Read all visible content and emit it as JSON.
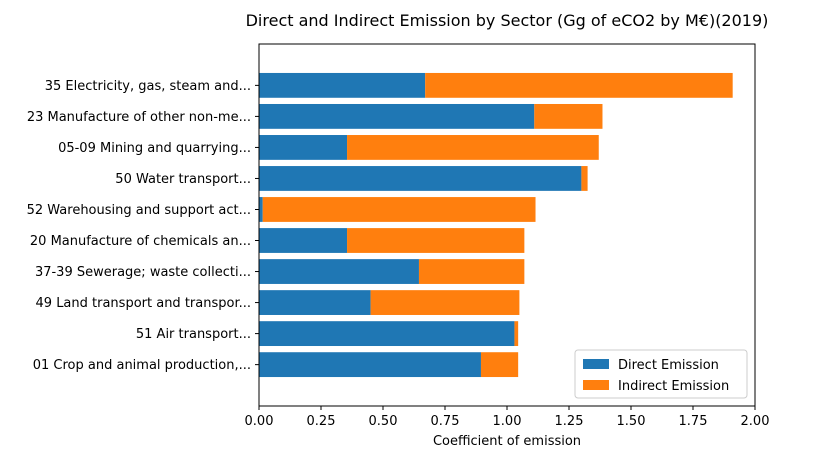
{
  "chart_data": {
    "type": "bar",
    "orientation": "horizontal",
    "stacked": true,
    "title": "Direct and Indirect Emission by Sector (Gg of eCO2 by M€)(2019)",
    "xlabel": "Coefficient of emission",
    "ylabel": "",
    "xlim": [
      0,
      2.0
    ],
    "xticks": [
      "0.00",
      "0.25",
      "0.50",
      "0.75",
      "1.00",
      "1.25",
      "1.50",
      "1.75",
      "2.00"
    ],
    "xtick_values": [
      0,
      0.25,
      0.5,
      0.75,
      1.0,
      1.25,
      1.5,
      1.75,
      2.0
    ],
    "grid": false,
    "legend_position": "bottom-right",
    "categories": [
      "35 Electricity, gas, steam and...",
      "23 Manufacture of other non-me...",
      "05-09 Mining and quarrying...",
      "50 Water transport...",
      "52 Warehousing and support act...",
      "20 Manufacture of chemicals an...",
      "37-39 Sewerage; waste collecti...",
      "49 Land transport and transpor...",
      "51 Air transport...",
      "01 Crop and animal production,..."
    ],
    "series": [
      {
        "name": "Direct Emission",
        "color": "#1f77b4",
        "values": [
          0.67,
          1.11,
          0.355,
          1.3,
          0.015,
          0.355,
          0.645,
          0.45,
          1.03,
          0.895
        ]
      },
      {
        "name": "Indirect Emission",
        "color": "#ff7f0e",
        "values": [
          1.24,
          0.275,
          1.015,
          0.025,
          1.1,
          0.715,
          0.425,
          0.6,
          0.015,
          0.15
        ]
      }
    ]
  }
}
